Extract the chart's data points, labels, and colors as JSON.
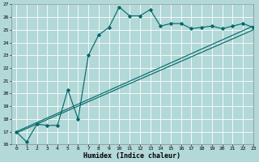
{
  "title": "",
  "xlabel": "Humidex (Indice chaleur)",
  "ylabel": "",
  "xlim": [
    -0.5,
    23
  ],
  "ylim": [
    16,
    27
  ],
  "yticks": [
    16,
    17,
    18,
    19,
    20,
    21,
    22,
    23,
    24,
    25,
    26,
    27
  ],
  "xticks": [
    0,
    1,
    2,
    3,
    4,
    5,
    6,
    7,
    8,
    9,
    10,
    11,
    12,
    13,
    14,
    15,
    16,
    17,
    18,
    19,
    20,
    21,
    22,
    23
  ],
  "bg_color": "#b2d8d8",
  "grid_color": "#ffffff",
  "line_color": "#006666",
  "line1_x": [
    0,
    1,
    2,
    3,
    4,
    5,
    6,
    7,
    8,
    9,
    10,
    11,
    12,
    13,
    14,
    15,
    16,
    17,
    18,
    19,
    20,
    21,
    22,
    23
  ],
  "line1_y": [
    17.0,
    16.2,
    17.6,
    17.5,
    17.5,
    20.3,
    18.0,
    23.0,
    24.6,
    25.2,
    26.8,
    26.1,
    26.1,
    26.6,
    25.3,
    25.5,
    25.5,
    25.1,
    25.2,
    25.3,
    25.1,
    25.3,
    25.5,
    25.2
  ],
  "line2_x": [
    0,
    23
  ],
  "line2_y": [
    17.0,
    25.3
  ],
  "line3_x": [
    0,
    23
  ],
  "line3_y": [
    16.9,
    25.0
  ],
  "marker": "D",
  "markersize": 1.8,
  "linewidth": 0.8,
  "tick_fontsize": 4.5,
  "xlabel_fontsize": 6.0
}
